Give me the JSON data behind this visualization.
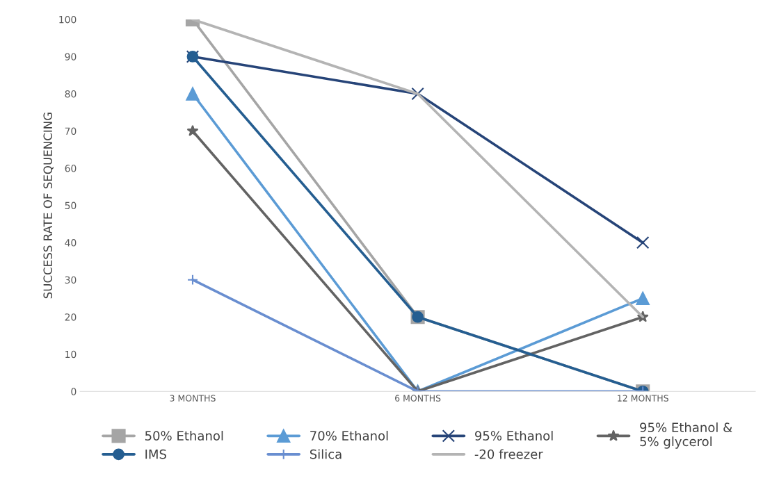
{
  "chart_data": {
    "type": "line",
    "ylabel": "SUCCESS RATE OF SEQUENCING",
    "categories": [
      "3 MONTHS",
      "6 MONTHS",
      "12 MONTHS"
    ],
    "ylim": [
      0,
      100
    ],
    "yticks": [
      0,
      10,
      20,
      30,
      40,
      50,
      60,
      70,
      80,
      90,
      100
    ],
    "grid": false,
    "legend": "bottom",
    "series": [
      {
        "name": "50% Ethanol",
        "color": "#a5a5a5",
        "marker": "square",
        "values": [
          100,
          20,
          0
        ]
      },
      {
        "name": "70% Ethanol",
        "color": "#5b9bd5",
        "marker": "triangle",
        "values": [
          80,
          0,
          25
        ]
      },
      {
        "name": "95% Ethanol",
        "color": "#264478",
        "marker": "cross",
        "values": [
          90,
          80,
          40
        ]
      },
      {
        "name": "95% Ethanol &\n5% glycerol",
        "color": "#636363",
        "marker": "star",
        "values": [
          70,
          0,
          20
        ]
      },
      {
        "name": "IMS",
        "color": "#255e91",
        "marker": "circle",
        "values": [
          90,
          20,
          0
        ]
      },
      {
        "name": "Silica",
        "color": "#698ed0",
        "marker": "plus",
        "values": [
          30,
          0,
          0
        ]
      },
      {
        "name": "-20 freezer",
        "color": "#b4b4b4",
        "marker": "none",
        "values": [
          100,
          80,
          20
        ]
      }
    ]
  }
}
